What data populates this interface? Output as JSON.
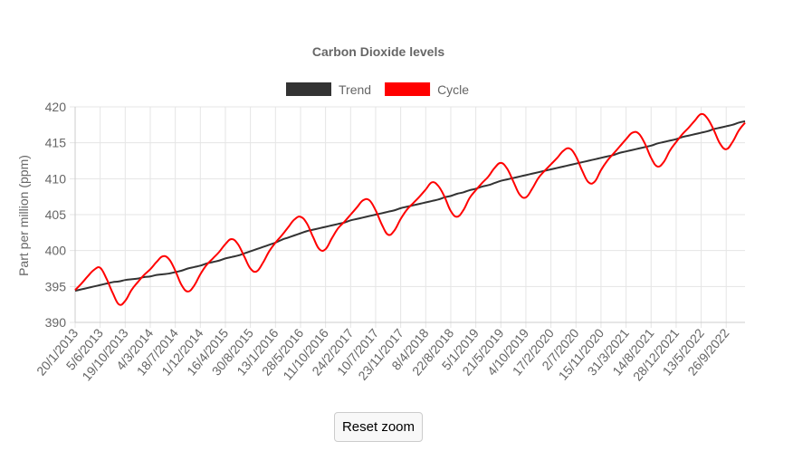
{
  "chart_data": {
    "type": "line",
    "title": "Carbon Dioxide levels",
    "y_label": "Part per million (ppm)",
    "legend": "top",
    "grid": true,
    "categories": [
      "20/1/2013",
      null,
      null,
      null,
      "5/6/2013",
      null,
      null,
      null,
      "19/10/2013",
      null,
      null,
      null,
      "4/3/2014",
      null,
      null,
      null,
      "18/7/2014",
      null,
      null,
      null,
      "1/12/2014",
      null,
      null,
      null,
      "16/4/2015",
      null,
      null,
      null,
      "30/8/2015",
      null,
      null,
      null,
      "13/1/2016",
      null,
      null,
      null,
      "28/5/2016",
      null,
      null,
      null,
      "11/10/2016",
      null,
      null,
      null,
      "24/2/2017",
      null,
      null,
      null,
      "10/7/2017",
      null,
      null,
      null,
      "23/11/2017",
      null,
      null,
      null,
      "8/4/2018",
      null,
      null,
      null,
      "22/8/2018",
      null,
      null,
      null,
      "5/1/2019",
      null,
      null,
      null,
      "21/5/2019",
      null,
      null,
      null,
      "4/10/2019",
      null,
      null,
      null,
      "17/2/2020",
      null,
      null,
      null,
      "2/7/2020",
      null,
      null,
      null,
      "15/11/2020",
      null,
      null,
      null,
      "31/3/2021",
      null,
      null,
      null,
      "14/8/2021",
      null,
      null,
      null,
      "28/12/2021",
      null,
      null,
      null,
      "13/5/2022",
      null,
      null,
      null,
      "26/9/2022",
      null,
      null,
      null
    ],
    "series": [
      {
        "name": "Trend",
        "color": "#333333",
        "values": [
          394.4,
          394.6,
          394.8,
          395.0,
          395.2,
          395.4,
          395.6,
          395.7,
          395.9,
          396.0,
          396.1,
          396.3,
          396.4,
          396.6,
          396.7,
          396.8,
          397.0,
          397.2,
          397.5,
          397.7,
          397.9,
          398.2,
          398.4,
          398.6,
          398.9,
          399.1,
          399.3,
          399.6,
          399.9,
          400.2,
          400.5,
          400.8,
          401.1,
          401.5,
          401.8,
          402.1,
          402.4,
          402.7,
          402.9,
          403.1,
          403.3,
          403.5,
          403.7,
          403.9,
          404.2,
          404.4,
          404.6,
          404.8,
          405.0,
          405.2,
          405.4,
          405.6,
          405.9,
          406.1,
          406.3,
          406.5,
          406.7,
          406.9,
          407.1,
          407.4,
          407.6,
          407.9,
          408.1,
          408.4,
          408.6,
          408.9,
          409.1,
          409.4,
          409.7,
          409.9,
          410.1,
          410.3,
          410.5,
          410.7,
          410.9,
          411.1,
          411.3,
          411.5,
          411.7,
          411.9,
          412.1,
          412.3,
          412.5,
          412.7,
          412.9,
          413.1,
          413.3,
          413.6,
          413.8,
          414.0,
          414.2,
          414.4,
          414.6,
          414.9,
          415.1,
          415.3,
          415.5,
          415.8,
          416.0,
          416.2,
          416.4,
          416.6,
          416.9,
          417.1,
          417.3,
          417.5,
          417.8,
          418.0
        ]
      },
      {
        "name": "Cycle",
        "color": "#ff0000",
        "values": [
          394.5,
          395.4,
          396.4,
          397.3,
          397.6,
          396.1,
          394.1,
          392.5,
          393.0,
          394.5,
          395.6,
          396.6,
          397.4,
          398.4,
          399.2,
          398.8,
          397.2,
          395.2,
          394.3,
          395.1,
          396.7,
          398.0,
          398.9,
          399.8,
          400.9,
          401.6,
          400.9,
          399.2,
          397.5,
          397.1,
          398.3,
          399.9,
          401.1,
          402.1,
          403.2,
          404.3,
          404.7,
          403.8,
          401.9,
          400.2,
          400.2,
          401.7,
          403.1,
          404.0,
          405.0,
          406.0,
          407.0,
          407.0,
          405.6,
          403.6,
          402.2,
          402.8,
          404.4,
          405.7,
          406.6,
          407.5,
          408.5,
          409.5,
          409.0,
          407.5,
          405.5,
          404.7,
          405.6,
          407.3,
          408.4,
          409.4,
          410.3,
          411.5,
          412.2,
          411.4,
          409.6,
          407.8,
          407.4,
          408.6,
          410.1,
          411.1,
          412.0,
          412.9,
          413.9,
          414.2,
          413.1,
          411.1,
          409.5,
          409.6,
          411.2,
          412.5,
          413.5,
          414.5,
          415.5,
          416.4,
          416.3,
          414.9,
          412.9,
          411.7,
          412.3,
          413.9,
          415.1,
          416.2,
          417.1,
          418.1,
          419.0,
          418.4,
          416.8,
          414.9,
          414.1,
          415.1,
          416.7,
          417.8
        ]
      }
    ],
    "ylim": [
      390,
      420
    ],
    "yticks": [
      390,
      395,
      400,
      405,
      410,
      415,
      420
    ]
  },
  "controls": {
    "reset_zoom": "Reset zoom"
  }
}
